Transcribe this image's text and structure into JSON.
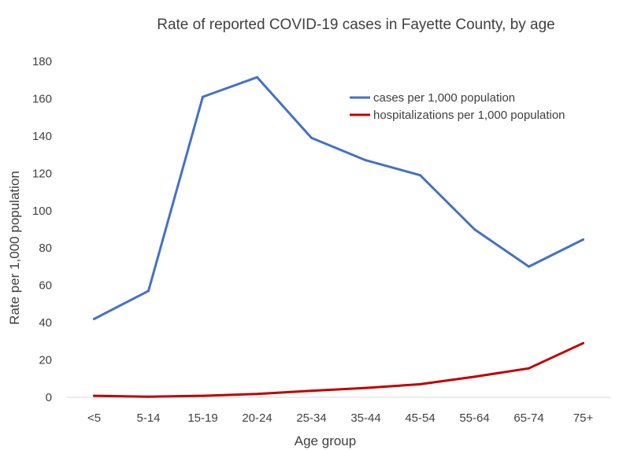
{
  "chart_data": {
    "type": "line",
    "title": "Rate of reported COVID-19 cases in Fayette County, by age",
    "xlabel": "Age group",
    "ylabel": "Rate per 1,000 population",
    "categories": [
      "<5",
      "5-14",
      "15-19",
      "20-24",
      "25-34",
      "35-44",
      "45-54",
      "55-64",
      "65-74",
      "75+"
    ],
    "ylim": [
      0,
      180
    ],
    "yticks": [
      "0",
      "20",
      "40",
      "60",
      "80",
      "100",
      "120",
      "140",
      "160",
      "180"
    ],
    "grid": false,
    "legend_position": "top-right",
    "series": [
      {
        "name": "cases per 1,000 population",
        "color": "#4472c4",
        "values": [
          42,
          57,
          161,
          171.5,
          139,
          127,
          119,
          90,
          70,
          84.5
        ]
      },
      {
        "name": "hospitalizations per 1,000 population",
        "color": "#c00000",
        "values": [
          0.8,
          0.3,
          0.8,
          1.8,
          3.5,
          5,
          7,
          11,
          15.5,
          29
        ]
      }
    ]
  }
}
